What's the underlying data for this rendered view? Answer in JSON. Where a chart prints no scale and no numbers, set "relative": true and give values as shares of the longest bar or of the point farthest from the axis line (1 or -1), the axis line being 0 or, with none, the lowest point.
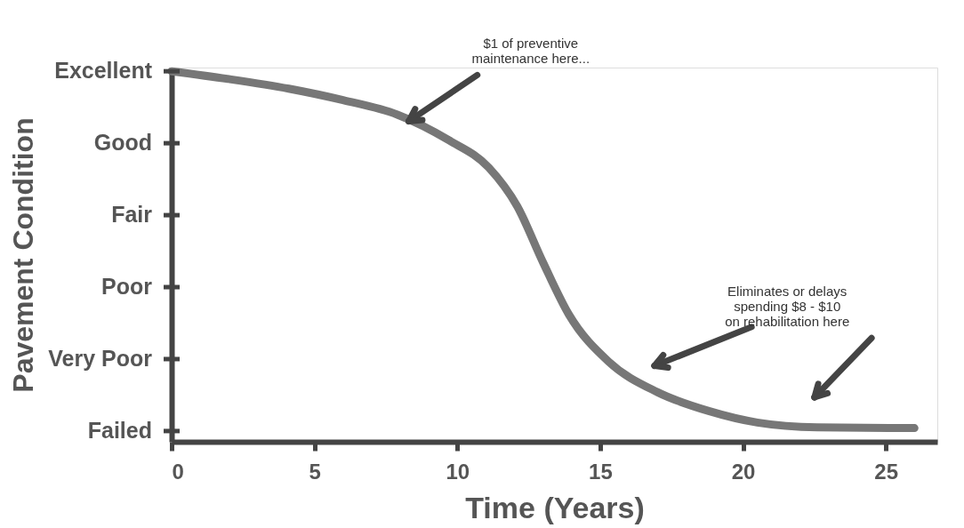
{
  "chart_data": {
    "type": "line",
    "xlabel": "Time (Years)",
    "ylabel": "Pavement Condition",
    "relative": true,
    "x": [
      0,
      2,
      4.1,
      6,
      7.9,
      9.7,
      11.1,
      12.1,
      13,
      13.9,
      15.3,
      17,
      18.8,
      20.5,
      22.6,
      26
    ],
    "series": [
      {
        "color": "#777777",
        "values": [
          1.0,
          0.979,
          0.953,
          0.922,
          0.883,
          0.814,
          0.74,
          0.635,
          0.484,
          0.344,
          0.216,
          0.134,
          0.083,
          0.052,
          0.039,
          0.037
        ]
      }
    ],
    "xlim": [
      0,
      26.8
    ],
    "xticks": [
      0,
      5,
      10,
      15,
      20,
      25
    ],
    "line_style": "solid",
    "annotations": [
      "Excellent",
      "Good",
      "Fair",
      "Poor",
      "Very Poor",
      "Failed",
      "$1 of preventive\nmaintenance here...",
      "Eliminates or delays\nspending $8 - $10\non rehabilitation here"
    ]
  }
}
